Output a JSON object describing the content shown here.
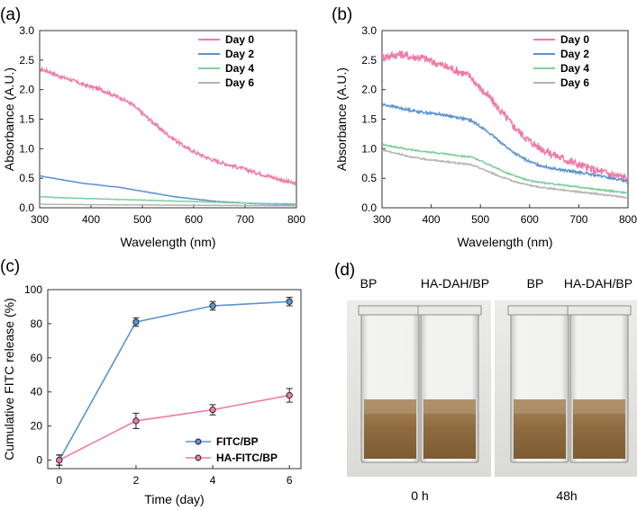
{
  "panel_labels": {
    "a": "(a)",
    "b": "(b)",
    "c": "(c)",
    "d": "(d)"
  },
  "colors": {
    "day0": "#f07aa8",
    "day2": "#5b93d3",
    "day4": "#7fcf9c",
    "day6": "#b8b3b3",
    "fitc": "#5b93d3",
    "hafitc": "#f07aa8"
  },
  "chart_data": [
    {
      "id": "a",
      "type": "line",
      "title": "",
      "xlabel": "Wavelength (nm)",
      "ylabel": "Absorbance (A.U.)",
      "xlim": [
        300,
        800
      ],
      "ylim": [
        0,
        3.0
      ],
      "xticks": [
        "300",
        "400",
        "500",
        "600",
        "700",
        "800"
      ],
      "yticks": [
        "0.0",
        "0.5",
        "1.0",
        "1.5",
        "2.0",
        "2.5",
        "3.0"
      ],
      "legend_position": "top-right",
      "x": [
        300,
        320,
        340,
        360,
        380,
        400,
        420,
        440,
        460,
        480,
        500,
        520,
        540,
        560,
        580,
        600,
        620,
        640,
        660,
        680,
        700,
        720,
        740,
        760,
        780,
        800
      ],
      "series": [
        {
          "name": "Day 0",
          "color_key": "day0",
          "noise": 0.03,
          "values": [
            2.35,
            2.3,
            2.22,
            2.17,
            2.1,
            2.05,
            2.0,
            1.92,
            1.85,
            1.75,
            1.6,
            1.45,
            1.3,
            1.17,
            1.05,
            0.95,
            0.87,
            0.8,
            0.75,
            0.7,
            0.65,
            0.6,
            0.55,
            0.5,
            0.45,
            0.4
          ]
        },
        {
          "name": "Day 2",
          "color_key": "day2",
          "noise": 0.004,
          "values": [
            0.54,
            0.51,
            0.48,
            0.45,
            0.42,
            0.4,
            0.38,
            0.36,
            0.34,
            0.31,
            0.28,
            0.25,
            0.22,
            0.19,
            0.17,
            0.15,
            0.13,
            0.11,
            0.1,
            0.09,
            0.08,
            0.07,
            0.065,
            0.06,
            0.055,
            0.05
          ]
        },
        {
          "name": "Day 4",
          "color_key": "day4",
          "noise": 0.004,
          "values": [
            0.19,
            0.18,
            0.17,
            0.165,
            0.16,
            0.155,
            0.15,
            0.145,
            0.14,
            0.135,
            0.13,
            0.125,
            0.12,
            0.115,
            0.11,
            0.105,
            0.1,
            0.095,
            0.09,
            0.085,
            0.08,
            0.075,
            0.072,
            0.07,
            0.068,
            0.065
          ]
        },
        {
          "name": "Day 6",
          "color_key": "day6",
          "noise": 0.002,
          "values": [
            0.06,
            0.058,
            0.056,
            0.055,
            0.054,
            0.053,
            0.052,
            0.051,
            0.05,
            0.049,
            0.048,
            0.047,
            0.046,
            0.045,
            0.044,
            0.043,
            0.042,
            0.041,
            0.04,
            0.039,
            0.038,
            0.037,
            0.036,
            0.035,
            0.034,
            0.033
          ]
        }
      ]
    },
    {
      "id": "b",
      "type": "line",
      "title": "",
      "xlabel": "Wavelength (nm)",
      "ylabel": "Absorbance (A.U.)",
      "xlim": [
        300,
        800
      ],
      "ylim": [
        0,
        3.0
      ],
      "xticks": [
        "300",
        "400",
        "500",
        "600",
        "700",
        "800"
      ],
      "yticks": [
        "0.0",
        "0.5",
        "1.0",
        "1.5",
        "2.0",
        "2.5",
        "3.0"
      ],
      "legend_position": "top-right",
      "x": [
        300,
        320,
        340,
        360,
        380,
        400,
        420,
        440,
        460,
        480,
        500,
        520,
        540,
        560,
        580,
        600,
        620,
        640,
        660,
        680,
        700,
        720,
        740,
        760,
        780,
        800
      ],
      "series": [
        {
          "name": "Day 0",
          "color_key": "day0",
          "noise": 0.07,
          "values": [
            2.55,
            2.58,
            2.6,
            2.55,
            2.55,
            2.48,
            2.42,
            2.36,
            2.3,
            2.22,
            2.02,
            1.85,
            1.65,
            1.45,
            1.28,
            1.13,
            1.02,
            0.93,
            0.86,
            0.79,
            0.73,
            0.67,
            0.62,
            0.58,
            0.54,
            0.5
          ]
        },
        {
          "name": "Day 2",
          "color_key": "day2",
          "noise": 0.02,
          "values": [
            1.75,
            1.72,
            1.68,
            1.65,
            1.62,
            1.6,
            1.58,
            1.55,
            1.52,
            1.48,
            1.38,
            1.25,
            1.12,
            0.98,
            0.87,
            0.78,
            0.72,
            0.68,
            0.65,
            0.62,
            0.6,
            0.57,
            0.54,
            0.51,
            0.48,
            0.45
          ]
        },
        {
          "name": "Day 4",
          "color_key": "day4",
          "noise": 0.012,
          "values": [
            1.07,
            1.04,
            1.01,
            0.98,
            0.96,
            0.94,
            0.92,
            0.9,
            0.88,
            0.86,
            0.8,
            0.72,
            0.64,
            0.57,
            0.51,
            0.46,
            0.43,
            0.41,
            0.39,
            0.37,
            0.35,
            0.33,
            0.31,
            0.29,
            0.27,
            0.25
          ]
        },
        {
          "name": "Day 6",
          "color_key": "day6",
          "noise": 0.012,
          "values": [
            0.98,
            0.94,
            0.9,
            0.86,
            0.83,
            0.81,
            0.79,
            0.77,
            0.75,
            0.73,
            0.67,
            0.6,
            0.53,
            0.47,
            0.42,
            0.38,
            0.35,
            0.33,
            0.31,
            0.29,
            0.27,
            0.25,
            0.23,
            0.21,
            0.19,
            0.17
          ]
        }
      ]
    },
    {
      "id": "c",
      "type": "line",
      "title": "",
      "xlabel": "Time (day)",
      "ylabel": "Cumulative FITC release (%)",
      "xlim": [
        -0.3,
        6.3
      ],
      "ylim": [
        -5,
        100
      ],
      "xticks": [
        "0",
        "2",
        "4",
        "6"
      ],
      "yticks": [
        "0",
        "20",
        "40",
        "60",
        "80",
        "100"
      ],
      "legend_position": "bottom-right",
      "x": [
        0,
        2,
        4,
        6
      ],
      "series": [
        {
          "name": "FITC/BP",
          "color_key": "fitc",
          "values": [
            0,
            81,
            90.5,
            93
          ],
          "errors": [
            3,
            2.5,
            2.5,
            2.5
          ]
        },
        {
          "name": "HA-FITC/BP",
          "color_key": "hafitc",
          "values": [
            0,
            23,
            29.5,
            38
          ],
          "errors": [
            3,
            4.5,
            3,
            4
          ]
        }
      ]
    }
  ],
  "photo": {
    "labels": [
      "BP",
      "HA-DAH/BP",
      "BP",
      "HA-DAH/BP"
    ],
    "captions": [
      "0 h",
      "48h"
    ]
  }
}
